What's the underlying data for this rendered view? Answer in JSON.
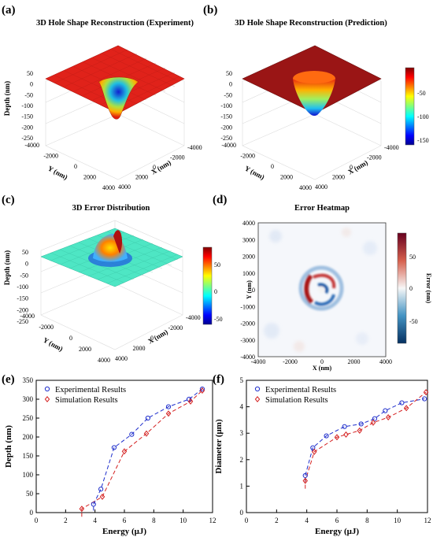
{
  "panels": [
    {
      "label": "(a)",
      "title": "3D Hole Shape Reconstruction (Experiment)"
    },
    {
      "label": "(b)",
      "title": "3D Hole Shape Reconstruction (Prediction)"
    },
    {
      "label": "(c)",
      "title": "3D Error Distribution"
    },
    {
      "label": "(d)",
      "title": "Error Heatmap"
    },
    {
      "label": "(e)",
      "title": ""
    },
    {
      "label": "(f)",
      "title": ""
    }
  ],
  "surface_axes": {
    "zlabel": "Depth (nm)",
    "xlabel": "X (nm)",
    "ylabel": "Y (nm)",
    "ab_zticks": [
      "50",
      "0",
      "-50",
      "-100",
      "-150",
      "-200",
      "-250"
    ],
    "c_zticks": [
      "50",
      "0",
      "-50",
      "-100",
      "-150",
      "-200",
      "-250"
    ],
    "x_ticks": [
      "-4000",
      "-2000",
      "0",
      "2000",
      "4000"
    ],
    "y_ticks": [
      "-4000",
      "-2000",
      "0",
      "2000",
      "4000"
    ]
  },
  "colorbars": {
    "b": {
      "ticks": [
        "-50",
        "-100",
        "-150"
      ]
    },
    "c": {
      "ticks": [
        "50",
        "0",
        "-50"
      ]
    },
    "d": {
      "label": "Error (nm)",
      "ticks": [
        "50",
        "0",
        "-50"
      ]
    }
  },
  "heatmap": {
    "xlabel": "X (nm)",
    "ylabel": "Y (nm)",
    "x_ticks": [
      "-4000",
      "-2000",
      "0",
      "2000",
      "4000"
    ],
    "y_ticks": [
      "4000",
      "3000",
      "2000",
      "1000",
      "0",
      "-1000",
      "-2000",
      "-3000",
      "-4000"
    ]
  },
  "chart_data": [
    {
      "panel": "(e)",
      "type": "scatter",
      "xlabel": "Energy (μJ)",
      "ylabel": "Depth (nm)",
      "xlim": [
        0,
        12
      ],
      "ylim": [
        0,
        350
      ],
      "xticks": [
        0,
        2,
        4,
        6,
        8,
        10,
        12
      ],
      "yticks": [
        0,
        50,
        100,
        150,
        200,
        250,
        300,
        350
      ],
      "legend": "top-left",
      "series": [
        {
          "name": "Experimental Results",
          "color": "#1f2ecc",
          "marker": "circle",
          "x": [
            3.9,
            4.4,
            5.3,
            6.5,
            7.6,
            9.0,
            10.4,
            11.3
          ],
          "y": [
            22,
            62,
            172,
            207,
            250,
            280,
            300,
            327
          ]
        },
        {
          "name": "Simulation Results",
          "color": "#d42020",
          "marker": "diamond",
          "x": [
            3.1,
            4.5,
            6.0,
            7.5,
            9.0,
            10.5,
            11.3
          ],
          "y": [
            10,
            42,
            162,
            209,
            262,
            294,
            323
          ]
        }
      ]
    },
    {
      "panel": "(f)",
      "type": "scatter",
      "xlabel": "Energy (μJ)",
      "ylabel": "Diameter (μm)",
      "xlim": [
        0,
        12
      ],
      "ylim": [
        0,
        5
      ],
      "xticks": [
        0,
        2,
        4,
        6,
        8,
        10,
        12
      ],
      "yticks": [
        0,
        1,
        2,
        3,
        4,
        5
      ],
      "legend": "top-left",
      "series": [
        {
          "name": "Experimental Results",
          "color": "#1f2ecc",
          "marker": "circle",
          "x": [
            3.9,
            4.4,
            5.3,
            6.5,
            7.6,
            8.5,
            9.2,
            10.3,
            11.8
          ],
          "y": [
            1.4,
            2.45,
            2.9,
            3.25,
            3.35,
            3.55,
            3.85,
            4.15,
            4.3
          ]
        },
        {
          "name": "Simulation Results",
          "color": "#d42020",
          "marker": "diamond",
          "x": [
            3.9,
            4.5,
            6.0,
            6.6,
            7.5,
            8.4,
            9.4,
            10.6,
            11.9
          ],
          "y": [
            1.2,
            2.3,
            2.85,
            2.95,
            3.1,
            3.4,
            3.6,
            3.95,
            4.55
          ]
        }
      ]
    }
  ]
}
